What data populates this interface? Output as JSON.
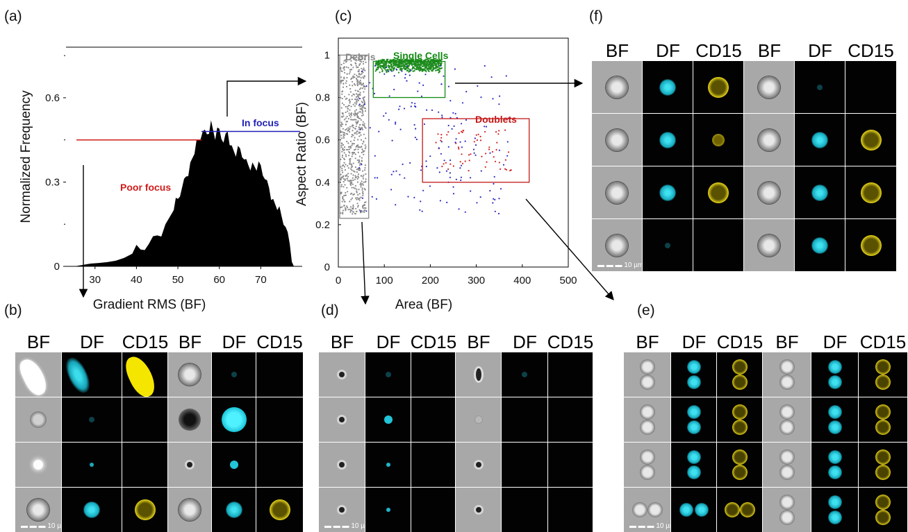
{
  "panel_labels": {
    "a": "(a)",
    "b": "(b)",
    "c": "(c)",
    "d": "(d)",
    "e": "(e)",
    "f": "(f)"
  },
  "channel_headers": [
    "BF",
    "DF",
    "CD15",
    "BF",
    "DF",
    "CD15"
  ],
  "scale_bar": "10 µm",
  "chart_data": [
    {
      "type": "area",
      "xlabel": "Gradient RMS (BF)",
      "ylabel": "Normalized Frequency",
      "xlim": [
        23,
        80
      ],
      "ylim": [
        0,
        0.78
      ],
      "xticks": [
        30,
        40,
        50,
        60,
        70
      ],
      "yticks": [
        {
          "v": 0,
          "label": "0"
        },
        {
          "v": 0.3,
          "label": "0.3"
        },
        {
          "v": 0.6,
          "label": "0.6"
        }
      ],
      "annotations": [
        {
          "text": "In focus",
          "color": "#1f1fb8"
        },
        {
          "text": "Poor focus",
          "color": "#d11b1b"
        }
      ],
      "gate_level": 0.45,
      "x": [
        25,
        27,
        29,
        31,
        33,
        35,
        37,
        39,
        41,
        43,
        45,
        47,
        49,
        50,
        51,
        52,
        53,
        54,
        55,
        56,
        57,
        58,
        59,
        60,
        61,
        62,
        63,
        64,
        65,
        66,
        67,
        68,
        69,
        70,
        71,
        72,
        73,
        74,
        75,
        76,
        77,
        78
      ],
      "values": [
        0,
        0.005,
        0.01,
        0.012,
        0.015,
        0.02,
        0.03,
        0.045,
        0.06,
        0.08,
        0.11,
        0.15,
        0.2,
        0.24,
        0.28,
        0.32,
        0.37,
        0.4,
        0.45,
        0.48,
        0.47,
        0.52,
        0.45,
        0.49,
        0.44,
        0.48,
        0.43,
        0.39,
        0.42,
        0.38,
        0.36,
        0.37,
        0.34,
        0.36,
        0.31,
        0.28,
        0.24,
        0.2,
        0.18,
        0.14,
        0.08,
        0
      ]
    },
    {
      "type": "scatter",
      "xlabel": "Area (BF)",
      "ylabel": "Aspect Ratio (BF)",
      "xlim": [
        0,
        500
      ],
      "ylim": [
        0,
        1.08
      ],
      "xticks": [
        0,
        100,
        200,
        300,
        400,
        500
      ],
      "yticks": [
        {
          "v": 0,
          "label": "0"
        },
        {
          "v": 0.2,
          "label": "0.2"
        },
        {
          "v": 0.4,
          "label": "0.4"
        },
        {
          "v": 0.6,
          "label": "0.6"
        },
        {
          "v": 0.8,
          "label": "0.8"
        },
        {
          "v": 1,
          "label": "1"
        }
      ],
      "gates": [
        {
          "name": "Debris",
          "color": "#888888",
          "x": [
            3,
            66
          ],
          "y": [
            0.23,
            1.0
          ]
        },
        {
          "name": "Single Cells",
          "color": "#138a13",
          "x": [
            76,
            232
          ],
          "y": [
            0.8,
            0.97
          ]
        },
        {
          "name": "Doublets",
          "color": "#c41818",
          "x": [
            183,
            415
          ],
          "y": [
            0.4,
            0.7
          ]
        }
      ],
      "series": [
        {
          "name": "Debris",
          "color": "#8a8a8a",
          "cx": [
            5,
            60
          ],
          "cy": [
            0.25,
            1.0
          ],
          "count": 650
        },
        {
          "name": "Single Cells",
          "color": "#1e8c1e",
          "cx": [
            80,
            225
          ],
          "cy": [
            0.84,
            0.98
          ],
          "count": 750
        },
        {
          "name": "Doublets",
          "color": "#d62020",
          "cx": [
            205,
            380
          ],
          "cy": [
            0.45,
            0.65
          ],
          "count": 60
        },
        {
          "color": "#2b2bc4",
          "cx": [
            45,
            370
          ],
          "cy": [
            0.25,
            0.95
          ],
          "count": 170
        }
      ]
    }
  ],
  "galleries": {
    "b": [
      [
        "bf-blob",
        "df-big",
        "cd-blob",
        "bf-cell",
        "df-faint",
        "none"
      ],
      [
        "bf-ring",
        "df-faint",
        "none",
        "bf-dark",
        "df-bright",
        "none"
      ],
      [
        "bf-bright",
        "df-dot",
        "none",
        "bf-dot",
        "df-small",
        "none"
      ],
      [
        "bf-cell",
        "df-med",
        "cd-ring",
        "bf-cell",
        "df-med",
        "cd-ring"
      ]
    ],
    "d": [
      [
        "bf-dot",
        "df-faint",
        "none",
        "bf-oval",
        "df-faint",
        "none"
      ],
      [
        "bf-dot",
        "df-small",
        "none",
        "bf-faint",
        "none",
        "none"
      ],
      [
        "bf-dot",
        "df-tiny",
        "none",
        "bf-dot",
        "none",
        "none"
      ],
      [
        "bf-dot",
        "df-tiny",
        "none",
        "bf-dot",
        "none",
        "none"
      ]
    ],
    "e": [
      [
        "bf-dbl",
        "df-dbl",
        "cd-dbl",
        "bf-dbl",
        "df-dbl",
        "cd-dbl"
      ],
      [
        "bf-dbl",
        "df-dbl",
        "cd-dbl",
        "bf-dbl",
        "df-dbl",
        "cd-dbl"
      ],
      [
        "bf-dbl",
        "df-dbl",
        "cd-dbl",
        "bf-dbl",
        "df-dbl",
        "cd-dbl"
      ],
      [
        "bf-dblh",
        "df-dblh",
        "cd-dblh",
        "bf-dbl",
        "df-dbl",
        "cd-dbl"
      ]
    ],
    "f": [
      [
        "bf-cell",
        "df-med",
        "cd-ring",
        "bf-cell",
        "df-faint",
        "none"
      ],
      [
        "bf-cell",
        "df-med",
        "cd-dim",
        "bf-cell",
        "df-med",
        "cd-ring"
      ],
      [
        "bf-cell",
        "df-med",
        "cd-ring",
        "bf-cell",
        "df-med",
        "cd-ring"
      ],
      [
        "bf-cell",
        "df-faint",
        "none",
        "bf-cell",
        "df-med",
        "cd-ring"
      ]
    ]
  }
}
